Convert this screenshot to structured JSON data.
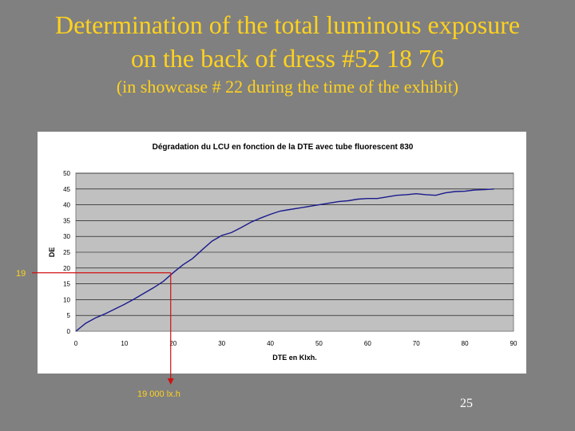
{
  "slide": {
    "title_line1": "Determination of the total luminous exposure",
    "title_line2": "on the back of dress #52 18 76",
    "subtitle": "(in showcase # 22 during the time of the exhibit)",
    "page_number": "25"
  },
  "annotations": {
    "y_marker_label": "19",
    "x_marker_label": "19 000 lx.h",
    "marker_value": {
      "x": 19.5,
      "y": 18.5
    },
    "colors": {
      "marker_line": "#D01010",
      "annotation_text": "#FFD21E"
    }
  },
  "chart_data": {
    "type": "line",
    "title": "Dégradation du LCU en fonction de la DTE avec tube fluorescent 830",
    "xlabel": "DTE en Klxh.",
    "ylabel": "DE",
    "xlim": [
      0,
      90
    ],
    "ylim": [
      0,
      50
    ],
    "x_ticks": [
      "0",
      "10",
      "20",
      "30",
      "40",
      "50",
      "60",
      "70",
      "80",
      "90"
    ],
    "y_ticks": [
      "0",
      "5",
      "10",
      "15",
      "20",
      "25",
      "30",
      "35",
      "40",
      "45",
      "50"
    ],
    "grid": true,
    "colors": {
      "plot_area": "#C0C0C0",
      "chart_area": "#FFFFFF",
      "line": "#1A1A8C",
      "grid": "#000000"
    },
    "series": [
      {
        "x": [
          0,
          2,
          4,
          6,
          8,
          10,
          12,
          14,
          16,
          18,
          20,
          22,
          24,
          26,
          28,
          30,
          32,
          34,
          36,
          38,
          40,
          42,
          44,
          46,
          48,
          50,
          52,
          54,
          56,
          58,
          60,
          62,
          64,
          66,
          68,
          70,
          72,
          74,
          76,
          78,
          80,
          82,
          84,
          86
        ],
        "y": [
          0,
          2.5,
          4.2,
          5.5,
          7,
          8.5,
          10.2,
          12,
          13.8,
          15.8,
          18.5,
          21,
          23,
          25.8,
          28.5,
          30.3,
          31.2,
          32.8,
          34.5,
          35.8,
          37,
          38,
          38.5,
          39,
          39.5,
          40,
          40.5,
          41,
          41.3,
          41.8,
          42,
          42,
          42.5,
          43,
          43.2,
          43.5,
          43.2,
          43,
          43.8,
          44.2,
          44.3,
          44.7,
          44.8,
          45
        ]
      }
    ]
  }
}
